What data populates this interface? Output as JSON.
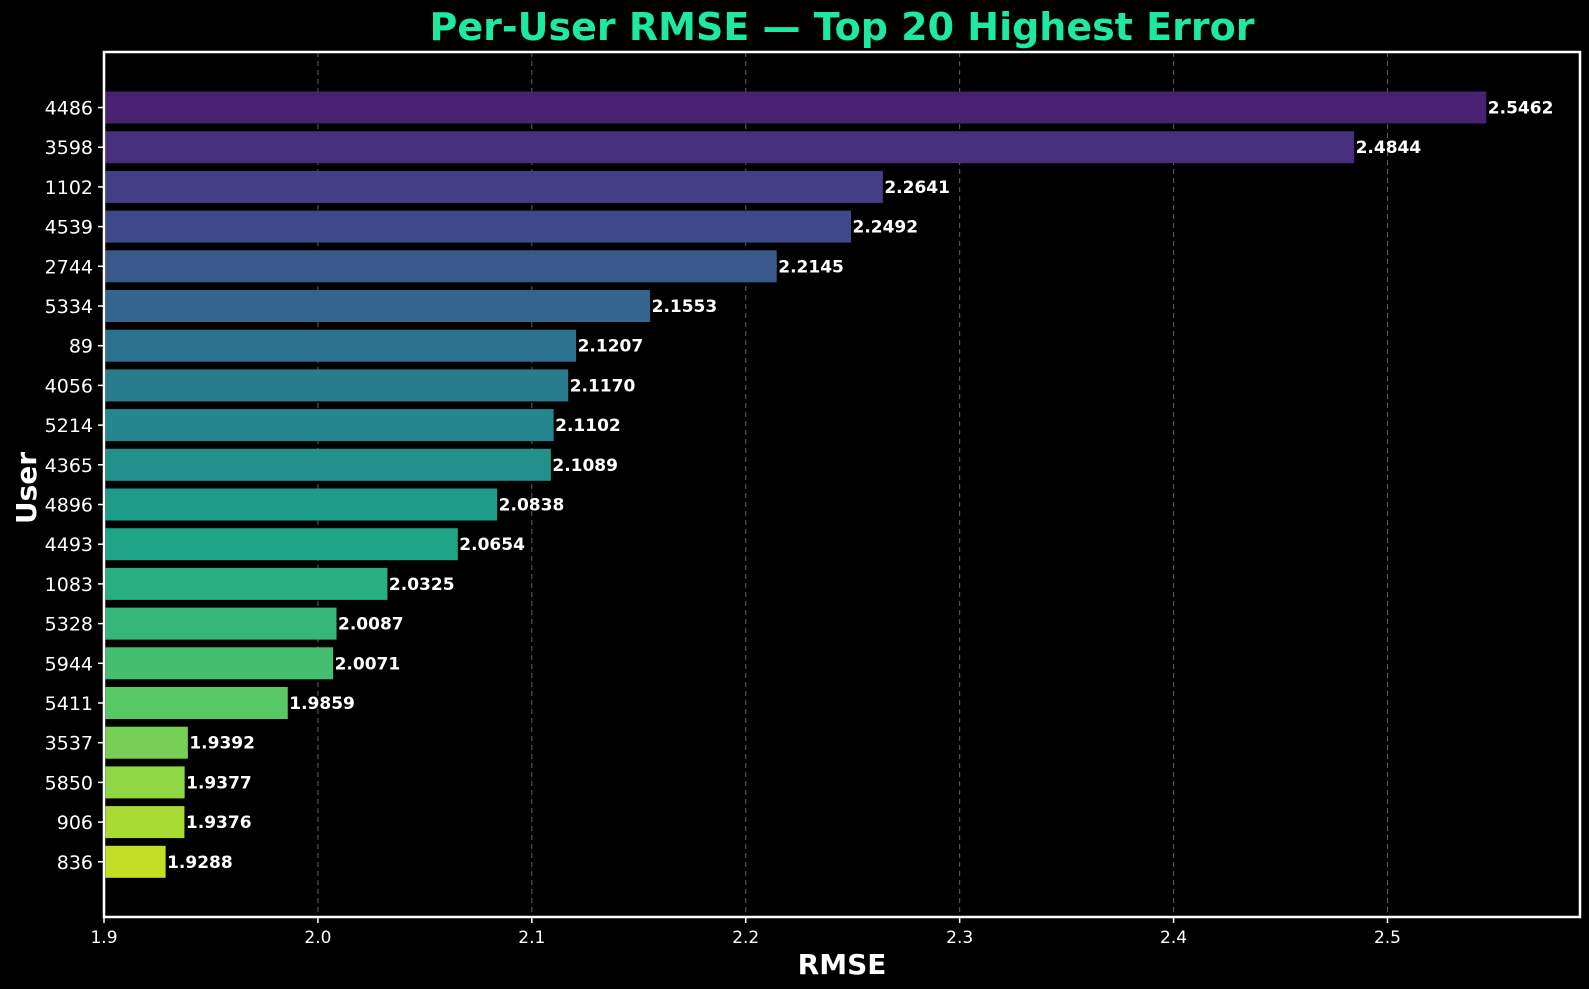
{
  "chart_data": {
    "type": "bar",
    "orientation": "horizontal",
    "title": "Per-User RMSE — Top 20 Highest Error",
    "xlabel": "RMSE",
    "ylabel": "User",
    "categories": [
      "4486",
      "3598",
      "1102",
      "4539",
      "2744",
      "5334",
      "89",
      "4056",
      "5214",
      "4365",
      "4896",
      "4493",
      "1083",
      "5328",
      "5944",
      "5411",
      "3537",
      "5850",
      "906",
      "836"
    ],
    "values": [
      2.5462,
      2.4844,
      2.2641,
      2.2492,
      2.2145,
      2.1553,
      2.1207,
      2.117,
      2.1102,
      2.1089,
      2.0838,
      2.0654,
      2.0325,
      2.0087,
      2.0071,
      1.9859,
      1.9392,
      1.9377,
      1.9376,
      1.9288
    ],
    "value_labels": [
      "2.5462",
      "2.4844",
      "2.2641",
      "2.2492",
      "2.2145",
      "2.1553",
      "2.1207",
      "2.1170",
      "2.1102",
      "2.1089",
      "2.0838",
      "2.0654",
      "2.0325",
      "2.0087",
      "2.0071",
      "1.9859",
      "1.9392",
      "1.9377",
      "1.9376",
      "1.9288"
    ],
    "xlim": [
      1.9,
      2.59
    ],
    "xticks": [
      1.9,
      2.0,
      2.1,
      2.2,
      2.3,
      2.4,
      2.5
    ],
    "xtick_labels": [
      "1.9",
      "2.0",
      "2.1",
      "2.2",
      "2.3",
      "2.4",
      "2.5"
    ],
    "grid": "x-dashed",
    "colors": {
      "background": "#000000",
      "title": "#1de9a0",
      "text": "#ffffff",
      "spine": "#ffffff",
      "grid": "#8a8a8a",
      "colormap": "viridis",
      "bars": [
        "#482173",
        "#472f7d",
        "#433e85",
        "#3e4989",
        "#38588c",
        "#32648e",
        "#2c718e",
        "#287c8e",
        "#24868e",
        "#21918c",
        "#1e9c89",
        "#20a486",
        "#28ae80",
        "#35b779",
        "#44bf70",
        "#58c765",
        "#75d054",
        "#8fd744",
        "#a8db34",
        "#c2df23"
      ]
    }
  }
}
